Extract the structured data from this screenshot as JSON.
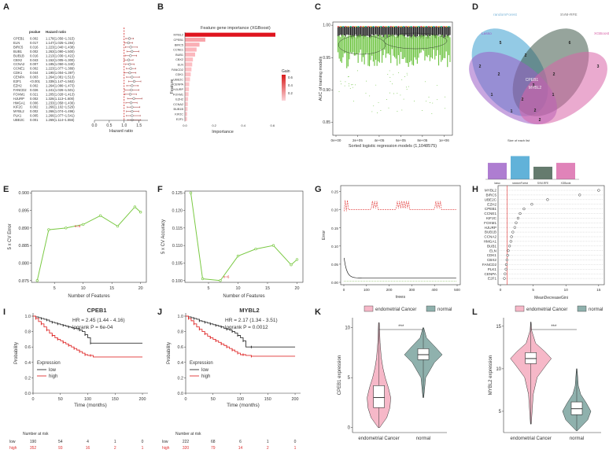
{
  "chart_data": [
    {
      "panel": "A",
      "type": "forest",
      "headers": {
        "pvalue": "pvalue",
        "hr": "Hazard ratio"
      },
      "genes": [
        "CPEB1",
        "ELN",
        "BIRC5",
        "BUB1",
        "BUB1B",
        "CBX2",
        "CCNA2",
        "CCNE1",
        "CDK1",
        "CENPA",
        "E2F1",
        "EZH2",
        "FANCD2",
        "FOXM1",
        "HJURP",
        "HMGA1",
        "KIF2C",
        "MYBL2",
        "PLK1",
        "UBE2C"
      ],
      "pvalues": [
        "0.002",
        "0.017",
        "0.016",
        "0.002",
        "0.016",
        "0.043",
        "0.007",
        "0.002",
        "0.044",
        "0.003",
        "<0.001",
        "0.002",
        "0.026",
        "0.021",
        "0.002",
        "0.006",
        "0.002",
        "0.002",
        "0.005",
        "0.001"
      ],
      "hr_text": [
        "1.178(1.056~1.315)",
        "1.147(1.025~1.284)",
        "1.223(1.040~1.438)",
        "1.263(1.090~1.500)",
        "1.213(1.036~1.422)",
        "1.152(1.005~1.300)",
        "1.185(1.050~1.340)",
        "1.223(1.077~1.389)",
        "1.190(1.004~1.397)",
        "1.264(1.081~1.513)",
        "1.339(1.147~1.563)",
        "1.264(1.086~1.473)",
        "1.241(1.026~1.501)",
        "1.205(1.028~1.413)",
        "1.326(1.113~1.600)",
        "1.233(1.058~1.436)",
        "1.266(1.102~1.529)",
        "1.266(1.074~1.496)",
        "1.266(1.077~1.541)",
        "1.269(1.114~1.556)"
      ],
      "hr": [
        1.178,
        1.147,
        1.223,
        1.263,
        1.213,
        1.152,
        1.185,
        1.223,
        1.19,
        1.264,
        1.339,
        1.264,
        1.241,
        1.205,
        1.326,
        1.233,
        1.266,
        1.266,
        1.266,
        1.269
      ],
      "lo": [
        1.056,
        1.025,
        1.04,
        1.09,
        1.036,
        1.005,
        1.05,
        1.077,
        1.004,
        1.081,
        1.147,
        1.086,
        1.026,
        1.028,
        1.113,
        1.058,
        1.102,
        1.074,
        1.077,
        1.114
      ],
      "hi": [
        1.315,
        1.284,
        1.438,
        1.5,
        1.422,
        1.3,
        1.34,
        1.389,
        1.397,
        1.513,
        1.563,
        1.473,
        1.501,
        1.413,
        1.6,
        1.436,
        1.529,
        1.496,
        1.541,
        1.556
      ],
      "xticks": [
        "0.0",
        "0.5",
        "1.0",
        "1.5"
      ],
      "xlabel": "Hazard ratio",
      "xlim": [
        0,
        1.8
      ]
    },
    {
      "panel": "B",
      "type": "bar",
      "title": "Feature gene importance (XGBoost)",
      "categories": [
        "MYBL2",
        "CPEB1",
        "BIRC5",
        "CCNE1",
        "BUB1",
        "CBX2",
        "ELN",
        "FANCD2",
        "CDK1",
        "UBE2C",
        "CENPA",
        "HJURP",
        "FOXM1",
        "EZH2",
        "CCNA2",
        "BUB1B",
        "KIF2C",
        "E2F1"
      ],
      "values": [
        0.62,
        0.14,
        0.1,
        0.08,
        0.07,
        0.055,
        0.05,
        0.045,
        0.04,
        0.035,
        0.03,
        0.028,
        0.025,
        0.022,
        0.02,
        0.018,
        0.016,
        0.015
      ],
      "xticks": [
        "0.0",
        "0.2",
        "0.4",
        "0.6"
      ],
      "xlabel": "Importance",
      "ylabel": "Feature",
      "legend_title": "Gain",
      "legend_ticks": [
        "0.6",
        "0.4",
        "0.2"
      ]
    },
    {
      "panel": "C",
      "type": "scatter",
      "xlabel": "Sorted logistic regression models (1,1048575)",
      "ylabel": "AUC of training models",
      "xticks": [
        "0e+00",
        "2e+05",
        "4e+05",
        "6e+05",
        "8e+05",
        "1e+06"
      ],
      "yticks": [
        "0.85",
        "0.90",
        "0.95",
        "1.00"
      ],
      "ylim": [
        0.83,
        1.005
      ]
    },
    {
      "panel": "D",
      "type": "venn",
      "sets": [
        "randomForest",
        "SVM-RFE",
        "Lasso",
        "XGBoost"
      ],
      "region_counts": [
        "5",
        "6",
        "2",
        "2",
        "3",
        "2",
        "2",
        "1",
        "2",
        "1",
        "2",
        "1",
        "3",
        "2"
      ],
      "center_genes": [
        "CPEB1",
        "MYBL2"
      ],
      "bar_title": "Size of each list",
      "bar_categories": [
        "lasso",
        "randomForest",
        "SVM-RFE",
        "XGBoost"
      ],
      "bar_values": [
        17,
        24,
        13,
        17
      ],
      "colors": [
        "#3a9fd0",
        "#3f5a4a",
        "#9a5cc6",
        "#d864a8"
      ]
    },
    {
      "panel": "E",
      "type": "line",
      "x": [
        2,
        4,
        7,
        10,
        13,
        16,
        19,
        20
      ],
      "y": [
        0.875,
        0.8895,
        0.89,
        0.891,
        0.8935,
        0.8905,
        0.896,
        0.8945
      ],
      "xticks": [
        "5",
        "10",
        "15",
        "20"
      ],
      "yticks": [
        "0.875",
        "0.880",
        "0.885",
        "0.890",
        "0.895",
        "0.900"
      ],
      "xlim": [
        1,
        21
      ],
      "ylim": [
        0.8745,
        0.9005
      ],
      "xlabel": "Number of Features",
      "ylabel": "5 x CV Error",
      "annotation": "n=6"
    },
    {
      "panel": "F",
      "type": "line",
      "x": [
        2,
        4,
        7,
        10,
        13,
        16,
        19,
        20
      ],
      "y": [
        0.125,
        0.1005,
        0.1,
        0.107,
        0.109,
        0.11,
        0.1045,
        0.106
      ],
      "xticks": [
        "5",
        "10",
        "15",
        "20"
      ],
      "yticks": [
        "0.100",
        "0.105",
        "0.110",
        "0.115",
        "0.120",
        "0.125"
      ],
      "xlim": [
        1,
        21
      ],
      "ylim": [
        0.0995,
        0.1255
      ],
      "xlabel": "Number of Features",
      "ylabel": "5 x CV Accuracy",
      "annotation": "n=6"
    },
    {
      "panel": "G",
      "type": "line",
      "xticks": [
        "0",
        "100",
        "200",
        "300",
        "400",
        "500"
      ],
      "yticks": [
        "0.00",
        "0.05",
        "0.10",
        "0.15",
        "0.20",
        "0.25"
      ],
      "xlim": [
        0,
        500
      ],
      "ylim": [
        0,
        0.26
      ],
      "xlabel": "trees",
      "ylabel": "Error"
    },
    {
      "panel": "H",
      "type": "dotplot",
      "categories": [
        "MYBL2",
        "BIRC5",
        "UBE2C",
        "EZH2",
        "CPEB1",
        "CCNE1",
        "KIF2C",
        "FOXM1",
        "HJURP",
        "BUB1B",
        "CCNA2",
        "HMGA1",
        "BUB1",
        "ELN",
        "CDK1",
        "CBX2",
        "FANCD2",
        "PLK1",
        "CENPA",
        "E2F1"
      ],
      "values": [
        15,
        12.1,
        7.2,
        4.8,
        3.6,
        3.0,
        2.7,
        2.4,
        2.2,
        1.9,
        1.7,
        1.6,
        1.4,
        1.2,
        1.1,
        1.0,
        0.9,
        0.85,
        0.7,
        0.6
      ],
      "xticks": [
        "0",
        "5",
        "10",
        "15"
      ],
      "xlim": [
        0,
        15.5
      ],
      "xlabel": "MeanDecreaseGini"
    },
    {
      "panel": "I",
      "type": "survival",
      "title": "CPEB1",
      "hr": "HR = 2.45 (1.44 - 4.16)",
      "logrank": "logrank P = 6e-04",
      "xticks": [
        "0",
        "50",
        "100",
        "150",
        "200"
      ],
      "yticks": [
        "0.0",
        "0.2",
        "0.4",
        "0.6",
        "0.8",
        "1.0"
      ],
      "xlabel": "Time (months)",
      "ylabel": "Probability",
      "legend_title": "Expression",
      "legend": [
        "low",
        "high"
      ],
      "risk_title": "Number at risk",
      "risk": {
        "low": [
          "190",
          "54",
          "4",
          "1",
          "0"
        ],
        "high": [
          "352",
          "93",
          "16",
          "2",
          "1"
        ]
      },
      "low_curve": {
        "x": [
          0,
          5,
          10,
          15,
          20,
          25,
          30,
          35,
          40,
          45,
          50,
          55,
          60,
          65,
          70,
          75,
          80,
          85,
          90,
          95,
          100,
          105,
          110,
          200
        ],
        "y": [
          1,
          0.99,
          0.98,
          0.97,
          0.96,
          0.95,
          0.93,
          0.92,
          0.91,
          0.9,
          0.89,
          0.88,
          0.87,
          0.86,
          0.85,
          0.84,
          0.84,
          0.82,
          0.8,
          0.76,
          0.72,
          0.65,
          0.65,
          0.65
        ]
      },
      "high_curve": {
        "x": [
          0,
          5,
          10,
          15,
          20,
          25,
          30,
          35,
          40,
          45,
          50,
          55,
          60,
          65,
          70,
          75,
          80,
          85,
          90,
          95,
          100,
          105,
          110,
          200
        ],
        "y": [
          1,
          0.97,
          0.93,
          0.9,
          0.86,
          0.82,
          0.78,
          0.75,
          0.72,
          0.7,
          0.68,
          0.66,
          0.64,
          0.62,
          0.6,
          0.58,
          0.56,
          0.54,
          0.52,
          0.5,
          0.49,
          0.49,
          0.47,
          0.47
        ]
      },
      "colors": {
        "low": "#333333",
        "high": "#e03030"
      }
    },
    {
      "panel": "J",
      "type": "survival",
      "title": "MYBL2",
      "hr": "HR = 2.17 (1.34 - 3.51)",
      "logrank": "logrank P = 0.0012",
      "xticks": [
        "0",
        "50",
        "100",
        "150",
        "200"
      ],
      "yticks": [
        "0.0",
        "0.2",
        "0.4",
        "0.6",
        "0.8",
        "1.0"
      ],
      "xlabel": "Time (months)",
      "ylabel": "Probability",
      "legend_title": "Expression",
      "legend": [
        "low",
        "high"
      ],
      "risk_title": "Number at risk",
      "risk": {
        "low": [
          "222",
          "68",
          "6",
          "1",
          "0"
        ],
        "high": [
          "320",
          "79",
          "14",
          "2",
          "1"
        ]
      },
      "low_curve": {
        "x": [
          0,
          5,
          10,
          15,
          20,
          25,
          30,
          35,
          40,
          45,
          50,
          55,
          60,
          65,
          70,
          75,
          80,
          85,
          90,
          95,
          100,
          105,
          110,
          120,
          200
        ],
        "y": [
          1,
          0.99,
          0.98,
          0.97,
          0.96,
          0.94,
          0.93,
          0.92,
          0.91,
          0.9,
          0.89,
          0.88,
          0.87,
          0.86,
          0.84,
          0.83,
          0.82,
          0.8,
          0.78,
          0.75,
          0.72,
          0.68,
          0.6,
          0.6,
          0.6
        ]
      },
      "high_curve": {
        "x": [
          0,
          5,
          10,
          15,
          20,
          25,
          30,
          35,
          40,
          45,
          50,
          55,
          60,
          65,
          70,
          75,
          80,
          85,
          90,
          95,
          100,
          105,
          110,
          120,
          200
        ],
        "y": [
          1,
          0.97,
          0.94,
          0.9,
          0.86,
          0.83,
          0.8,
          0.77,
          0.74,
          0.72,
          0.7,
          0.68,
          0.66,
          0.64,
          0.62,
          0.6,
          0.58,
          0.56,
          0.54,
          0.52,
          0.5,
          0.5,
          0.49,
          0.48,
          0.48
        ]
      },
      "colors": {
        "low": "#333333",
        "high": "#e03030"
      }
    },
    {
      "panel": "K",
      "type": "violin",
      "legend": [
        "endometrial Cancer",
        "normal"
      ],
      "categories": [
        "endometrial Cancer",
        "normal"
      ],
      "ylabel": "CPEB1 expression",
      "yticks": [
        "0",
        "5",
        "10"
      ],
      "ylim": [
        -0.5,
        11
      ],
      "significance": "***",
      "medians": [
        3.0,
        7.3
      ],
      "q1": [
        2.0,
        6.8
      ],
      "q3": [
        4.2,
        7.9
      ],
      "colors": [
        "#f6b8c8",
        "#8fb1ad"
      ]
    },
    {
      "panel": "L",
      "type": "violin",
      "legend": [
        "endometrial Cancer",
        "normal"
      ],
      "categories": [
        "endometrial Cancer",
        "normal"
      ],
      "ylabel": "MYBL2 expression",
      "yticks": [
        "5",
        "10",
        "15"
      ],
      "ylim": [
        2.5,
        16
      ],
      "significance": "***",
      "medians": [
        11.2,
        5.3
      ],
      "q1": [
        10.6,
        4.6
      ],
      "q3": [
        11.9,
        6.1
      ],
      "colors": [
        "#f6b8c8",
        "#8fb1ad"
      ]
    }
  ]
}
